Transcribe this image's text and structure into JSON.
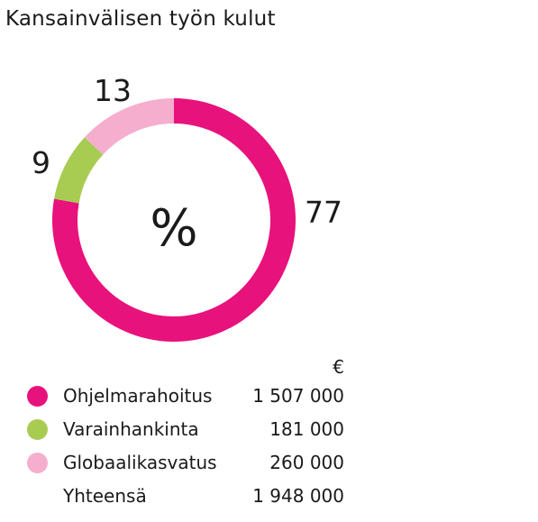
{
  "chart_data": {
    "type": "donut",
    "title": "Kansainvälisen työn kulut",
    "center_label": "%",
    "currency_label": "€",
    "slices": [
      {
        "name": "Ohjelmarahoitus",
        "percent": 77,
        "percent_label": "77",
        "value": 1507000,
        "value_label": "1 507 000",
        "color": "#e8127c"
      },
      {
        "name": "Varainhankinta",
        "percent": 9,
        "percent_label": "9",
        "value": 181000,
        "value_label": "181 000",
        "color": "#a8cc52"
      },
      {
        "name": "Globaalikasvatus",
        "percent": 13,
        "percent_label": "13",
        "value": 260000,
        "value_label": "260 000",
        "color": "#f5aecd"
      }
    ],
    "total": {
      "label": "Yhteensä",
      "value": 1948000,
      "value_label": "1 948 000"
    }
  }
}
